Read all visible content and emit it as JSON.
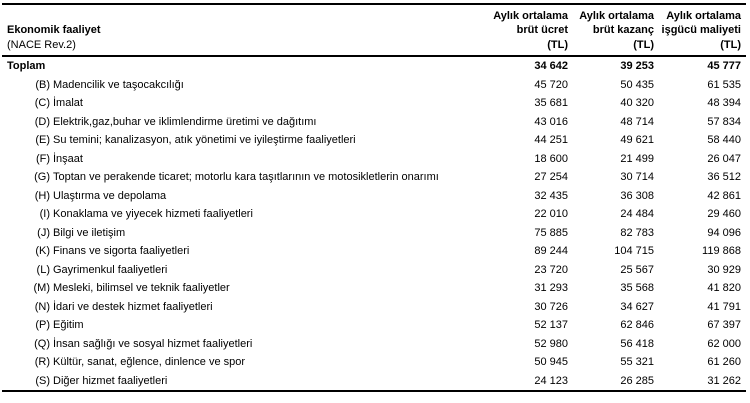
{
  "table": {
    "header": {
      "left_title": "Ekonomik faaliyet",
      "left_subtitle": "(NACE Rev.2)",
      "col_gross_wage": "Aylık ortalama\nbrüt ücret\n(TL)",
      "col_gross_earnings": "Aylık ortalama\nbrüt kazanç\n(TL)",
      "col_labour_cost": "Aylık ortalama\nişgücü maliyeti\n(TL)"
    },
    "rows": [
      {
        "code": "",
        "label": "Toplam",
        "wage": "34 642",
        "earnings": "39 253",
        "cost": "45 777"
      },
      {
        "code": "(B)",
        "label": "Madencilik ve taşocakcılığı",
        "wage": "45 720",
        "earnings": "50 435",
        "cost": "61 535"
      },
      {
        "code": "(C)",
        "label": "İmalat",
        "wage": "35 681",
        "earnings": "40 320",
        "cost": "48 394"
      },
      {
        "code": "(D)",
        "label": "Elektrik,gaz,buhar ve iklimlendirme üretimi ve dağıtımı",
        "wage": "43 016",
        "earnings": "48 714",
        "cost": "57 834"
      },
      {
        "code": "(E)",
        "label": "Su temini; kanalizasyon, atık yönetimi ve iyileştirme faaliyetleri",
        "wage": "44 251",
        "earnings": "49 621",
        "cost": "58 440"
      },
      {
        "code": "(F)",
        "label": "İnşaat",
        "wage": "18 600",
        "earnings": "21 499",
        "cost": "26 047"
      },
      {
        "code": "(G)",
        "label": "Toptan ve perakende ticaret; motorlu kara taşıtlarının ve motosikletlerin onarımı",
        "wage": "27 254",
        "earnings": "30 714",
        "cost": "36 512"
      },
      {
        "code": "(H)",
        "label": "Ulaştırma ve depolama",
        "wage": "32 435",
        "earnings": "36 308",
        "cost": "42 861"
      },
      {
        "code": "(I)",
        "label": "Konaklama ve yiyecek hizmeti faaliyetleri",
        "wage": "22 010",
        "earnings": "24 484",
        "cost": "29 460"
      },
      {
        "code": "(J)",
        "label": "Bilgi ve iletişim",
        "wage": "75 885",
        "earnings": "82 783",
        "cost": "94 096"
      },
      {
        "code": "(K)",
        "label": "Finans ve sigorta faaliyetleri",
        "wage": "89 244",
        "earnings": "104 715",
        "cost": "119 868"
      },
      {
        "code": "(L)",
        "label": "Gayrimenkul faaliyetleri",
        "wage": "23 720",
        "earnings": "25 567",
        "cost": "30 929"
      },
      {
        "code": "(M)",
        "label": "Mesleki, bilimsel ve teknik faaliyetler",
        "wage": "31 293",
        "earnings": "35 568",
        "cost": "41 820"
      },
      {
        "code": "(N)",
        "label": "İdari ve destek hizmet faaliyetleri",
        "wage": "30 726",
        "earnings": "34 627",
        "cost": "41 791"
      },
      {
        "code": "(P)",
        "label": "Eğitim",
        "wage": "52 137",
        "earnings": "62 846",
        "cost": "67 397"
      },
      {
        "code": "(Q)",
        "label": "İnsan sağlığı ve sosyal hizmet faaliyetleri",
        "wage": "52 980",
        "earnings": "56 418",
        "cost": "62 000"
      },
      {
        "code": "(R)",
        "label": "Kültür, sanat, eğlence, dinlence ve spor",
        "wage": "50 945",
        "earnings": "55 321",
        "cost": "61 260"
      },
      {
        "code": "(S)",
        "label": "Diğer hizmet faaliyetleri",
        "wage": "24 123",
        "earnings": "26 285",
        "cost": "31 262"
      }
    ]
  }
}
